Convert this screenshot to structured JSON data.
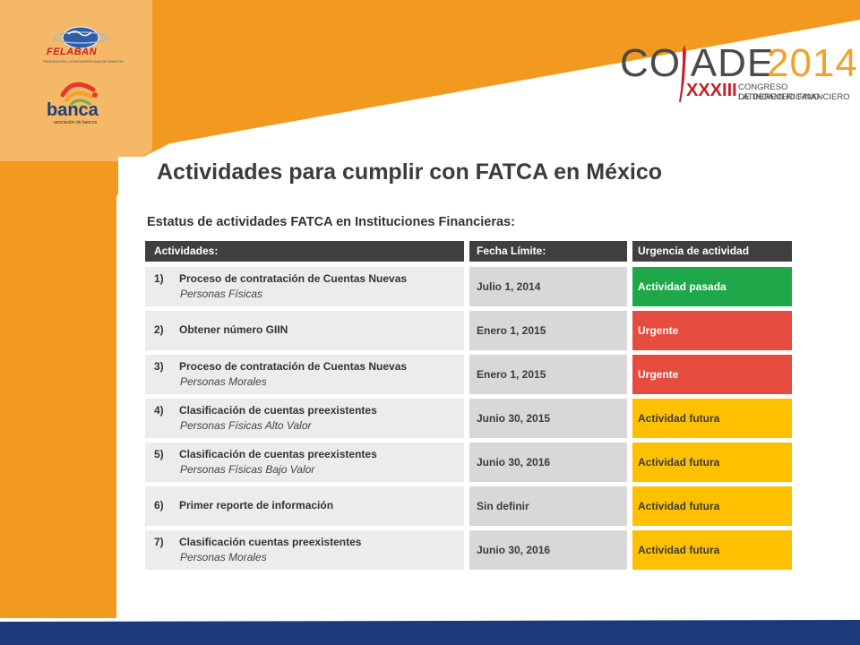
{
  "colors": {
    "orange": "#f29a1f",
    "light_orange": "#f4b866",
    "navy_band": "#1a3a7a",
    "header_bg": "#3f3f3f",
    "green": "#1fa84a",
    "red": "#e54b3e",
    "yellow": "#ffc000"
  },
  "logos": {
    "felaban": "FELABAN",
    "felaban_sub": "FEDERACIÓN LATINOAMERICANA DE BANCOS",
    "banca": "banca",
    "banca_sub": "asociación de bancos",
    "colade_word": "CO ADE",
    "colade_year": "2014",
    "colade_edition": "XXXIII",
    "colade_line1": "CONGRESO LATINOAMERICANO",
    "colade_line2": "DE DERECHO FINANCIERO"
  },
  "title": "Actividades para cumplir con FATCA en México",
  "subtitle": "Estatus de actividades FATCA en Instituciones Financieras:",
  "table": {
    "headers": {
      "activities": "Actividades:",
      "deadline": "Fecha Límite:",
      "urgency": "Urgencia de actividad"
    },
    "rows": [
      {
        "num": "1)",
        "activity": "Proceso de contratación de Cuentas Nuevas",
        "detail": "Personas Físicas",
        "deadline": "Julio 1, 2014",
        "status": "Actividad pasada"
      },
      {
        "num": "2)",
        "activity": "Obtener número GIIN",
        "detail": "",
        "deadline": "Enero 1, 2015",
        "status": "Urgente"
      },
      {
        "num": "3)",
        "activity": "Proceso de contratación de Cuentas Nuevas",
        "detail": "Personas Morales",
        "deadline": "Enero 1, 2015",
        "status": "Urgente"
      },
      {
        "num": "4)",
        "activity": "Clasificación de cuentas preexistentes",
        "detail": "Personas Físicas Alto Valor",
        "deadline": "Junio 30, 2015",
        "status": "Actividad futura"
      },
      {
        "num": "5)",
        "activity": "Clasificación de cuentas preexistentes",
        "detail": "Personas Físicas Bajo Valor",
        "deadline": "Junio 30, 2016",
        "status": "Actividad futura"
      },
      {
        "num": "6)",
        "activity": "Primer reporte de información",
        "detail": "",
        "deadline": "Sin definir",
        "status": "Actividad futura"
      },
      {
        "num": "7)",
        "activity": "Clasificación cuentas preexistentes",
        "detail": "Personas Morales",
        "deadline": "Junio 30, 2016",
        "status": "Actividad futura"
      }
    ]
  }
}
